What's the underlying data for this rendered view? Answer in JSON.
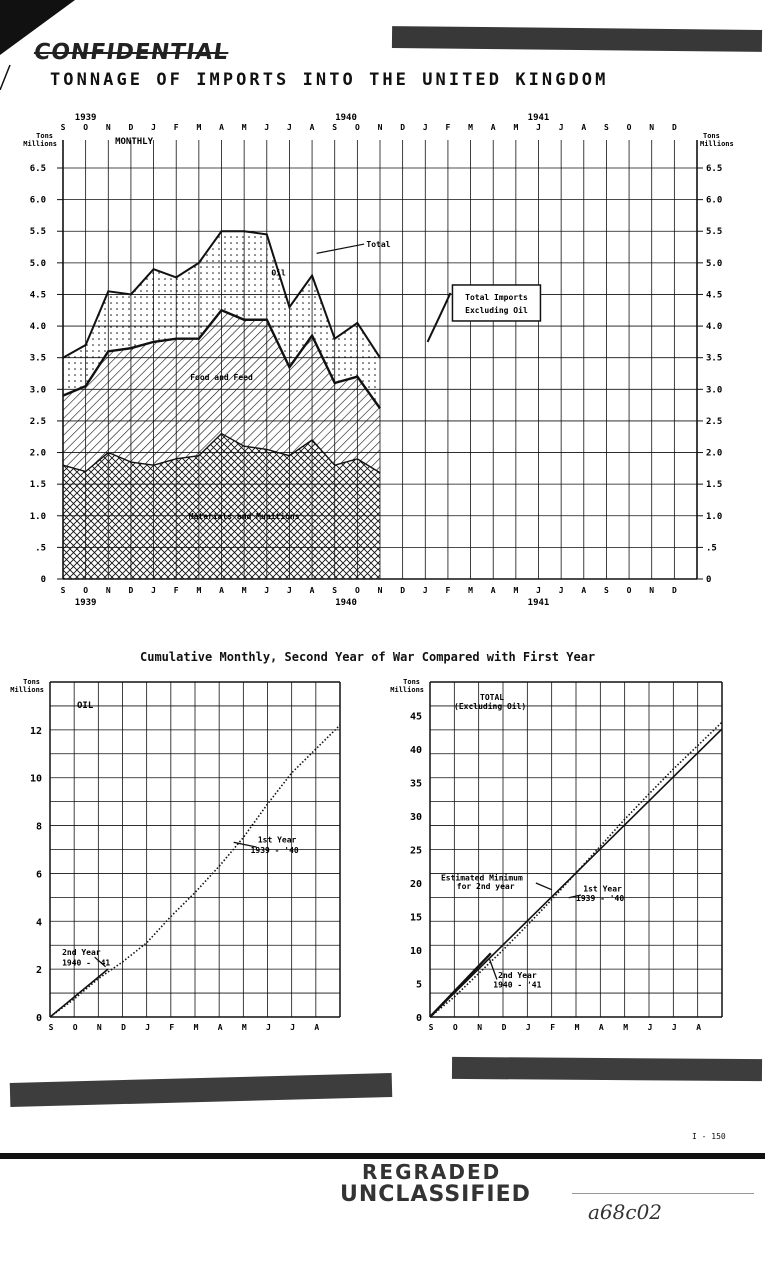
{
  "header": {
    "stamp_text": "CONFIDENTIAL",
    "title": "TONNAGE OF IMPORTS INTO THE UNITED KINGDOM"
  },
  "footer": {
    "page_ref": "I - 150",
    "regraded_stamp": "REGRADED",
    "unclassified_stamp": "UNCLASSIFIED",
    "handwritten_id": "a68c02"
  },
  "colors": {
    "ink": "#111111",
    "paper": "#ffffff",
    "redaction": "#222222"
  },
  "chart_data": [
    {
      "type": "area",
      "id": "monthly",
      "title": "MONTHLY",
      "ylabel": "Tons Millions",
      "ylim": [
        0,
        6.5
      ],
      "yticks": [
        0,
        0.5,
        1.0,
        1.5,
        2.0,
        2.5,
        3.0,
        3.5,
        4.0,
        4.5,
        5.0,
        5.5,
        6.0,
        6.5
      ],
      "ytick_labels": [
        "0",
        ".5",
        "1.0",
        "1.5",
        "2.0",
        "2.5",
        "3.0",
        "3.5",
        "4.0",
        "4.5",
        "5.0",
        "5.5",
        "6.0",
        "6.5"
      ],
      "month_letters": [
        "S",
        "O",
        "N",
        "D",
        "J",
        "F",
        "M",
        "A",
        "M",
        "J",
        "J",
        "A",
        "S",
        "O",
        "N",
        "D",
        "J",
        "F",
        "M",
        "A",
        "M",
        "J",
        "J",
        "A",
        "S",
        "O",
        "N",
        "D"
      ],
      "year_labels": [
        {
          "label": "1939",
          "index": 1
        },
        {
          "label": "1940",
          "index": 12.5
        },
        {
          "label": "1941",
          "index": 21
        }
      ],
      "x": [
        "1939-09",
        "1939-10",
        "1939-11",
        "1939-12",
        "1940-01",
        "1940-02",
        "1940-03",
        "1940-04",
        "1940-05",
        "1940-06",
        "1940-07",
        "1940-08",
        "1940-09",
        "1940-10",
        "1940-11"
      ],
      "series": [
        {
          "name": "Materials and Munitions",
          "values": [
            1.8,
            1.7,
            2.0,
            1.85,
            1.8,
            1.9,
            1.95,
            2.3,
            2.1,
            2.05,
            1.95,
            2.2,
            1.8,
            1.9,
            1.68
          ]
        },
        {
          "name": "Food and Feed",
          "values": [
            1.1,
            1.35,
            1.6,
            1.8,
            1.95,
            1.9,
            1.85,
            1.95,
            2.0,
            2.05,
            1.4,
            1.65,
            1.3,
            1.3,
            1.02
          ]
        },
        {
          "name": "Oil",
          "values": [
            0.6,
            0.65,
            0.95,
            0.85,
            1.15,
            0.97,
            1.2,
            1.25,
            1.4,
            1.35,
            0.95,
            0.95,
            0.7,
            0.85,
            0.8
          ]
        }
      ],
      "total": [
        3.5,
        3.7,
        4.55,
        4.5,
        4.9,
        4.77,
        5.0,
        5.5,
        5.5,
        5.45,
        4.3,
        4.8,
        3.8,
        4.05,
        3.5
      ],
      "labels": {
        "total": "Total",
        "oil": "Oil",
        "food": "Food and Feed",
        "materials": "Materials and Munitions",
        "box_line1": "Total Imports",
        "box_line2": "Excluding Oil"
      }
    },
    {
      "type": "line",
      "id": "cum-oil",
      "supertitle": "Cumulative Monthly, Second Year of War Compared with First Year",
      "title": "OIL",
      "ylabel": "Tons Millions",
      "ylim": [
        0,
        14
      ],
      "yticks": [
        0,
        2,
        4,
        6,
        8,
        10,
        12
      ],
      "months": [
        "S",
        "O",
        "N",
        "D",
        "J",
        "F",
        "M",
        "A",
        "M",
        "J",
        "J",
        "A"
      ],
      "series": [
        {
          "name": "1st Year 1939 -'40",
          "style": "dotted",
          "x": [
            0,
            1,
            2,
            3,
            4,
            5,
            6,
            7,
            8,
            9,
            10,
            11,
            12
          ],
          "values": [
            0,
            0.75,
            1.6,
            2.3,
            3.1,
            4.2,
            5.2,
            6.3,
            7.5,
            8.9,
            10.2,
            11.2,
            12.2
          ]
        },
        {
          "name": "2nd Year 1940 -'41",
          "style": "solid",
          "x": [
            0,
            2.4
          ],
          "values": [
            0,
            2.0
          ]
        }
      ],
      "labels": {
        "first1": "1st Year",
        "first2": "1939 - '40",
        "second1": "2nd Year",
        "second2": "1940 - '41"
      }
    },
    {
      "type": "line",
      "id": "cum-total",
      "title": "TOTAL",
      "subtitle": "(Excluding Oil)",
      "ylabel": "Tons Millions",
      "ylim": [
        0,
        50
      ],
      "yticks": [
        0,
        5,
        10,
        15,
        20,
        25,
        30,
        35,
        40,
        45
      ],
      "months": [
        "S",
        "O",
        "N",
        "D",
        "J",
        "F",
        "M",
        "A",
        "M",
        "J",
        "J",
        "A"
      ],
      "series": [
        {
          "name": "1st Year 1939 -'40",
          "style": "dotted",
          "x": [
            0,
            1,
            2,
            3,
            4,
            5,
            6,
            7,
            8,
            9,
            10,
            11,
            12
          ],
          "values": [
            0,
            3.0,
            6.5,
            10.0,
            13.7,
            17.5,
            21.5,
            25.5,
            29.5,
            33.3,
            37.0,
            40.5,
            44.0
          ]
        },
        {
          "name": "Estimated Minimum for 2nd year",
          "style": "solid",
          "x": [
            0,
            12
          ],
          "values": [
            0,
            43.0
          ]
        },
        {
          "name": "2nd Year 1940 -'41",
          "style": "solid-heavy",
          "x": [
            0,
            2.5
          ],
          "values": [
            0,
            9.5
          ]
        }
      ],
      "labels": {
        "est1": "Estimated Minimum",
        "est2": "for 2nd year",
        "first1": "1st Year",
        "first2": "1939 - '40",
        "second1": "2nd Year",
        "second2": "1940 - '41"
      }
    }
  ]
}
